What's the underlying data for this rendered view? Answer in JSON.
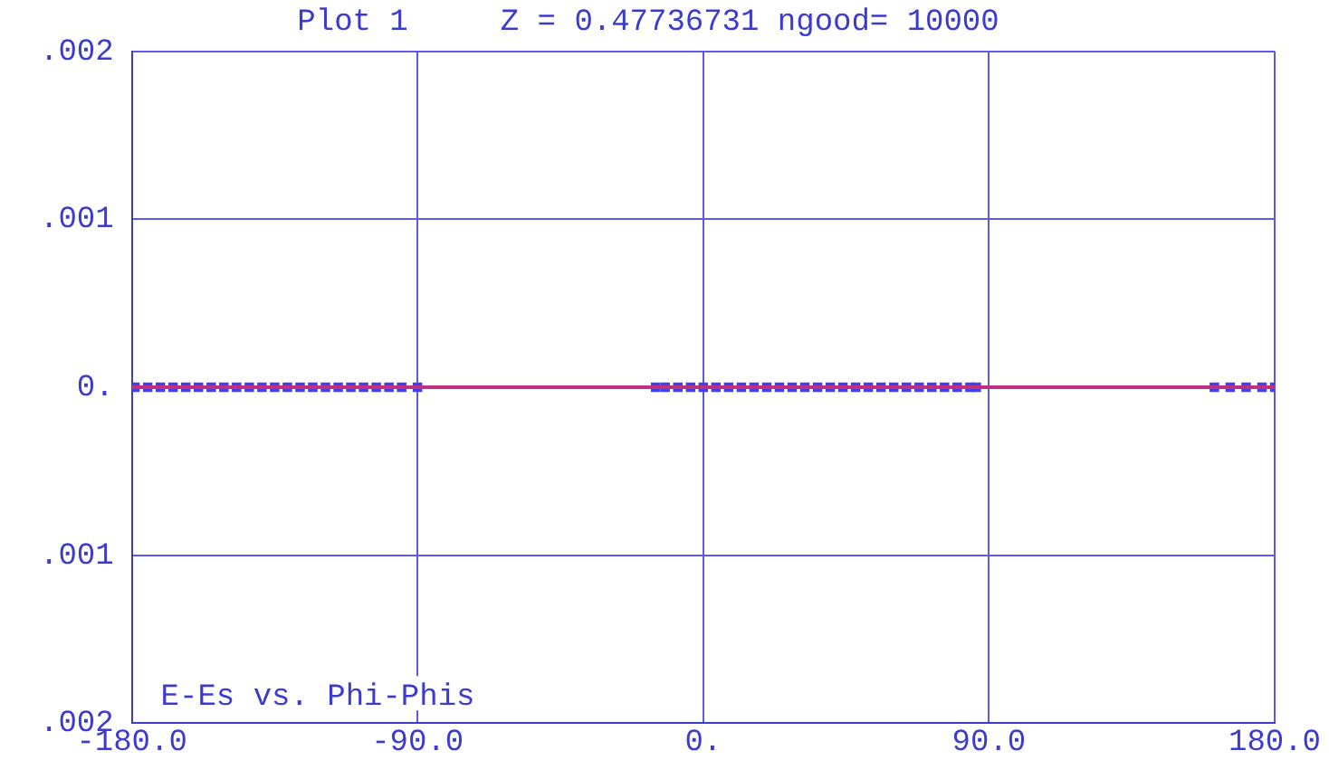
{
  "chart_data": {
    "type": "scatter",
    "title": "Plot 1     Z = 0.47736731 ngood= 10000",
    "annotations": [
      "E-Es vs. Phi-Phis"
    ],
    "xlim": [
      -180,
      180
    ],
    "xticks": [
      {
        "value": -180,
        "label": "-180.0"
      },
      {
        "value": -90,
        "label": "-90.0"
      },
      {
        "value": 0,
        "label": "0."
      },
      {
        "value": 90,
        "label": "90.0"
      },
      {
        "value": 180,
        "label": "180.0"
      }
    ],
    "ylim": [
      -0.002,
      0.002
    ],
    "yticks": [
      {
        "value": -0.002,
        "label": ".002"
      },
      {
        "value": -0.001,
        "label": ".001"
      },
      {
        "value": 0,
        "label": "0."
      },
      {
        "value": 0.001,
        "label": ".001"
      },
      {
        "value": 0.002,
        "label": ".002"
      }
    ],
    "grid": true,
    "marker": "square",
    "series": [
      {
        "color": "#4040f0",
        "x": [
          -179,
          -175,
          -171,
          -167,
          -163,
          -159,
          -155,
          -151,
          -147,
          -143,
          -139,
          -135,
          -131,
          -127,
          -123,
          -119,
          -115,
          -111,
          -107,
          -103,
          -99,
          -95,
          -90,
          -15,
          -12,
          -8,
          -4,
          0,
          4,
          8,
          12,
          16,
          20,
          24,
          28,
          32,
          36,
          40,
          44,
          48,
          52,
          56,
          60,
          64,
          68,
          72,
          76,
          80,
          84,
          86,
          161,
          166,
          171,
          176,
          180
        ],
        "values": [
          0,
          0,
          0,
          0,
          0,
          0,
          0,
          0,
          0,
          0,
          0,
          0,
          0,
          0,
          0,
          0,
          0,
          0,
          0,
          0,
          0,
          0,
          0,
          0,
          0,
          0,
          0,
          0,
          0,
          0,
          0,
          0,
          0,
          0,
          0,
          0,
          0,
          0,
          0,
          0,
          0,
          0,
          0,
          0,
          0,
          0,
          0,
          0,
          0,
          0,
          0,
          0,
          0,
          0,
          0
        ]
      },
      {
        "type": "line",
        "marker": "none",
        "color": "#c03080",
        "x": [
          -180,
          180
        ],
        "values": [
          0,
          0
        ]
      }
    ]
  }
}
